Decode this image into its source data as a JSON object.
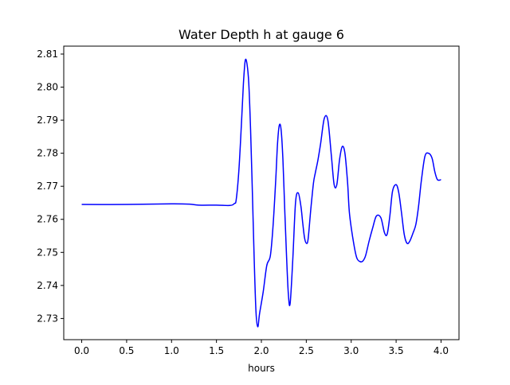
{
  "chart_data": {
    "type": "line",
    "title": "Water Depth h at gauge 6",
    "xlabel": "hours",
    "ylabel": "",
    "xlim": [
      -0.2,
      4.2
    ],
    "ylim": [
      2.7236,
      2.8124
    ],
    "grid": false,
    "legend": "none",
    "x_ticks": [
      0.0,
      0.5,
      1.0,
      1.5,
      2.0,
      2.5,
      3.0,
      3.5,
      4.0
    ],
    "x_tick_labels": [
      "0.0",
      "0.5",
      "1.0",
      "1.5",
      "2.0",
      "2.5",
      "3.0",
      "3.5",
      "4.0"
    ],
    "y_ticks": [
      2.73,
      2.74,
      2.75,
      2.76,
      2.77,
      2.78,
      2.79,
      2.8,
      2.81
    ],
    "y_tick_labels": [
      "2.73",
      "2.74",
      "2.75",
      "2.76",
      "2.77",
      "2.78",
      "2.79",
      "2.80",
      "2.81"
    ],
    "series": [
      {
        "color": "#0000ff",
        "x": [
          0.0,
          0.5,
          1.0,
          1.2,
          1.3,
          1.5,
          1.65,
          1.7,
          1.72,
          1.75,
          1.78,
          1.8,
          1.82,
          1.84,
          1.86,
          1.88,
          1.9,
          1.92,
          1.94,
          1.96,
          1.98,
          2.02,
          2.06,
          2.1,
          2.13,
          2.16,
          2.18,
          2.2,
          2.22,
          2.24,
          2.26,
          2.28,
          2.3,
          2.32,
          2.35,
          2.38,
          2.41,
          2.44,
          2.46,
          2.48,
          2.5,
          2.52,
          2.55,
          2.58,
          2.6,
          2.63,
          2.66,
          2.7,
          2.74,
          2.78,
          2.81,
          2.84,
          2.87,
          2.9,
          2.93,
          2.96,
          2.98,
          3.02,
          3.06,
          3.1,
          3.13,
          3.16,
          3.2,
          3.24,
          3.28,
          3.33,
          3.37,
          3.4,
          3.43,
          3.46,
          3.5,
          3.53,
          3.56,
          3.59,
          3.62,
          3.65,
          3.69,
          3.72,
          3.75,
          3.78,
          3.82,
          3.86,
          3.9,
          3.93,
          3.96,
          4.0
        ],
        "values": [
          2.7645,
          2.7645,
          2.7647,
          2.7646,
          2.7643,
          2.7643,
          2.7642,
          2.7648,
          2.766,
          2.775,
          2.79,
          2.801,
          2.808,
          2.807,
          2.801,
          2.787,
          2.768,
          2.748,
          2.732,
          2.7275,
          2.7315,
          2.738,
          2.746,
          2.749,
          2.758,
          2.772,
          2.783,
          2.7885,
          2.787,
          2.778,
          2.763,
          2.749,
          2.7375,
          2.7345,
          2.748,
          2.765,
          2.768,
          2.764,
          2.759,
          2.7545,
          2.7528,
          2.754,
          2.763,
          2.771,
          2.774,
          2.778,
          2.783,
          2.7905,
          2.79,
          2.779,
          2.7705,
          2.7705,
          2.778,
          2.782,
          2.78,
          2.771,
          2.762,
          2.754,
          2.7485,
          2.7472,
          2.7474,
          2.749,
          2.7535,
          2.7575,
          2.761,
          2.7605,
          2.756,
          2.7555,
          2.761,
          2.7685,
          2.7705,
          2.768,
          2.762,
          2.7555,
          2.7528,
          2.7533,
          2.756,
          2.7585,
          2.764,
          2.7715,
          2.779,
          2.78,
          2.7785,
          2.7745,
          2.772,
          2.772
        ]
      }
    ]
  }
}
